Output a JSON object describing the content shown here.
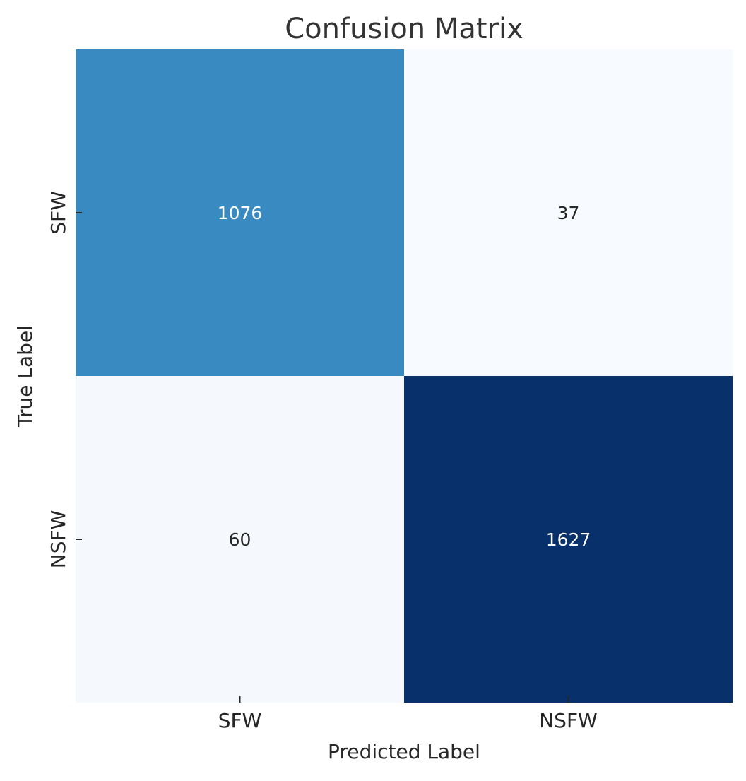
{
  "chart_data": {
    "type": "heatmap",
    "title": "Confusion Matrix",
    "xlabel": "Predicted Label",
    "ylabel": "True Label",
    "x_categories": [
      "SFW",
      "NSFW"
    ],
    "y_categories": [
      "SFW",
      "NSFW"
    ],
    "values": [
      [
        1076,
        37
      ],
      [
        60,
        1627
      ]
    ],
    "colormap": "Blues",
    "colorbar": false,
    "cell_colors": [
      [
        "#3a8ac2",
        "#f7fbff"
      ],
      [
        "#f5f9fe",
        "#08306b"
      ]
    ],
    "annotation_colors": [
      [
        "#ffffff",
        "#262626"
      ],
      [
        "#262626",
        "#ffffff"
      ]
    ]
  }
}
